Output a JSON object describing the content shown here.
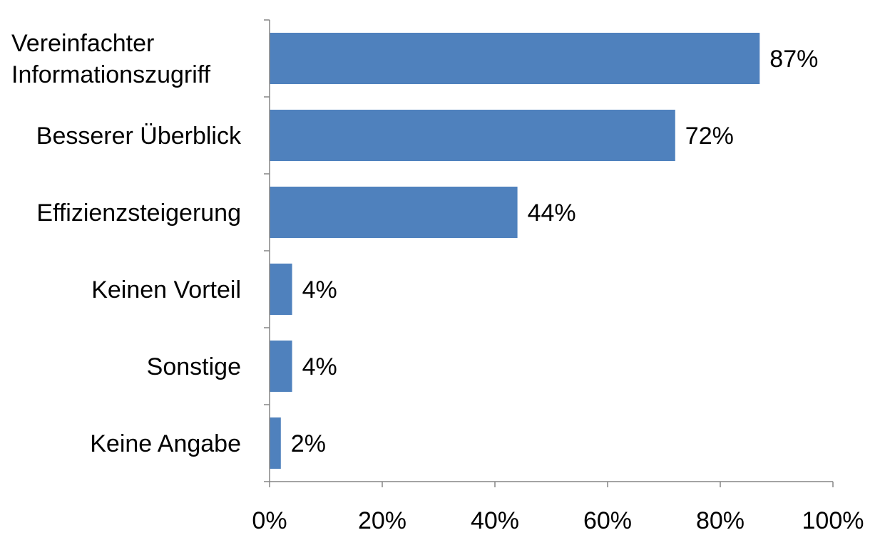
{
  "chart_data": {
    "type": "bar",
    "orientation": "horizontal",
    "categories": [
      [
        "Vereinfachter",
        "Informationszugriff"
      ],
      [
        "Besserer Überblick"
      ],
      [
        "Effizienzsteigerung"
      ],
      [
        "Keinen Vorteil"
      ],
      [
        "Sonstige"
      ],
      [
        "Keine Angabe"
      ]
    ],
    "values": [
      87,
      72,
      44,
      4,
      4,
      2
    ],
    "value_labels": [
      "87%",
      "72%",
      "44%",
      "4%",
      "4%",
      "2%"
    ],
    "xlim": [
      0,
      100
    ],
    "x_ticks": [
      0,
      20,
      40,
      60,
      80,
      100
    ],
    "x_tick_labels": [
      "0%",
      "20%",
      "40%",
      "60%",
      "80%",
      "100%"
    ],
    "grid": false,
    "legend": "none",
    "bar_color": "#4F81BD"
  }
}
